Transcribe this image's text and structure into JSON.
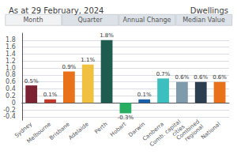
{
  "chart_data": {
    "type": "bar",
    "title": "As at 29 February, 2024",
    "subtitle": "Dwellings",
    "annotations": [
      "Month",
      "Quarter",
      "Annual Change",
      "Median Value"
    ],
    "categories": [
      "Sydney",
      "Melbourne",
      "Brisbane",
      "Adelaide",
      "Perth",
      "Hobart",
      "Darwin",
      "Canberra",
      "Comb. capital\ncities",
      "Combined\nregional",
      "National"
    ],
    "values": [
      0.5,
      0.1,
      0.9,
      1.1,
      1.8,
      -0.3,
      0.1,
      0.7,
      0.6,
      0.6,
      0.6
    ],
    "value_labels": [
      "0.5%",
      "0.1%",
      "0.9%",
      "1.1%",
      "1.8%",
      "-0.3%",
      "0.1%",
      "0.7%",
      "0.6%",
      "0.6%",
      "0.6%"
    ],
    "colors": [
      "#7b2233",
      "#c0392b",
      "#e8711a",
      "#f0c040",
      "#1e5c50",
      "#27ae60",
      "#1a5fa8",
      "#3dbfbf",
      "#7f9aaa",
      "#2c3e50",
      "#e8711a"
    ],
    "ylim": [
      -0.5,
      2.0
    ],
    "yticks": [
      -0.4,
      -0.2,
      0,
      0.2,
      0.4,
      0.6,
      0.8,
      {
        "value": 1,
        "label": "1.0"
      },
      1.2,
      1.4,
      1.6,
      1.8
    ],
    "grid": true,
    "data_labels": true
  }
}
